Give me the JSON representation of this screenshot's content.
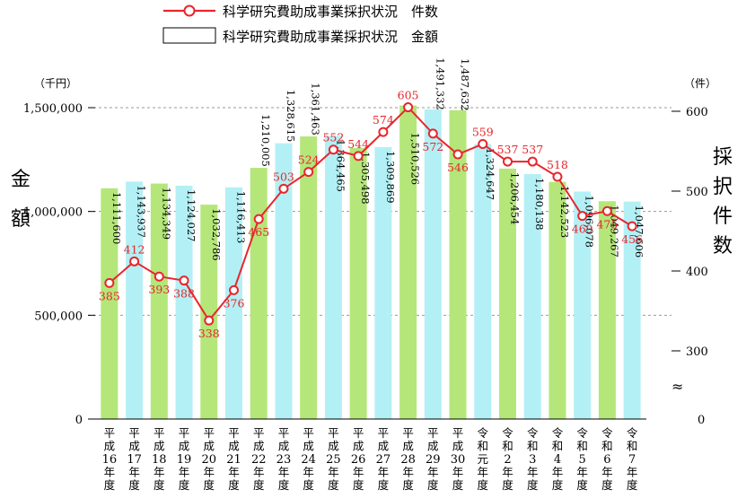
{
  "chart_data": {
    "type": "bar",
    "categories": [
      "平成16年度",
      "平成17年度",
      "平成18年度",
      "平成19年度",
      "平成20年度",
      "平成21年度",
      "平成22年度",
      "平成23年度",
      "平成24年度",
      "平成25年度",
      "平成26年度",
      "平成27年度",
      "平成28年度",
      "平成29年度",
      "平成30年度",
      "令和元年度",
      "令和2年度",
      "令和3年度",
      "令和4年度",
      "令和5年度",
      "令和6年度",
      "令和7年度"
    ],
    "category_lines": [
      [
        "平",
        "成",
        "16",
        "年",
        "度"
      ],
      [
        "平",
        "成",
        "17",
        "年",
        "度"
      ],
      [
        "平",
        "成",
        "18",
        "年",
        "度"
      ],
      [
        "平",
        "成",
        "19",
        "年",
        "度"
      ],
      [
        "平",
        "成",
        "20",
        "年",
        "度"
      ],
      [
        "平",
        "成",
        "21",
        "年",
        "度"
      ],
      [
        "平",
        "成",
        "22",
        "年",
        "度"
      ],
      [
        "平",
        "成",
        "23",
        "年",
        "度"
      ],
      [
        "平",
        "成",
        "24",
        "年",
        "度"
      ],
      [
        "平",
        "成",
        "25",
        "年",
        "度"
      ],
      [
        "平",
        "成",
        "26",
        "年",
        "度"
      ],
      [
        "平",
        "成",
        "27",
        "年",
        "度"
      ],
      [
        "平",
        "成",
        "28",
        "年",
        "度"
      ],
      [
        "平",
        "成",
        "29",
        "年",
        "度"
      ],
      [
        "平",
        "成",
        "30",
        "年",
        "度"
      ],
      [
        "令",
        "和",
        "元",
        "年",
        "度"
      ],
      [
        "令",
        "和",
        "2",
        "年",
        "度"
      ],
      [
        "令",
        "和",
        "3",
        "年",
        "度"
      ],
      [
        "令",
        "和",
        "4",
        "年",
        "度"
      ],
      [
        "令",
        "和",
        "5",
        "年",
        "度"
      ],
      [
        "令",
        "和",
        "6",
        "年",
        "度"
      ],
      [
        "令",
        "和",
        "7",
        "年",
        "度"
      ]
    ],
    "series": [
      {
        "name": "科学研究費助成事業採択状況　金額",
        "kind": "bar",
        "axis": "left",
        "values": [
          1111600,
          1143937,
          1134349,
          1124027,
          1032786,
          1116413,
          1210005,
          1328615,
          1361463,
          1364465,
          1305498,
          1309869,
          1510526,
          1491332,
          1487632,
          1324647,
          1206454,
          1180138,
          1142523,
          1096078,
          1049267,
          1047606
        ],
        "labels": [
          "1,111,600",
          "1,143,937",
          "1,134,349",
          "1,124,027",
          "1,032,786",
          "1,116,413",
          "1,210,005",
          "1,328,615",
          "1,361,463",
          "1,364,465",
          "1,305,498",
          "1,309,869",
          "1,510,526",
          "1,491,332",
          "1,487,632",
          "1,324,647",
          "1,206,454",
          "1,180,138",
          "1,142,523",
          "1,096,078",
          "1,049,267",
          "1,047,606"
        ],
        "bar_colors": [
          "green",
          "blue",
          "green",
          "blue",
          "green",
          "blue",
          "green",
          "blue",
          "green",
          "blue",
          "green",
          "blue",
          "green",
          "blue",
          "green",
          "blue",
          "green",
          "blue",
          "green",
          "blue",
          "green",
          "blue"
        ]
      },
      {
        "name": "科学研究費助成事業採択状況　件数",
        "kind": "line",
        "axis": "right",
        "values": [
          385,
          412,
          393,
          388,
          338,
          376,
          465,
          503,
          524,
          552,
          544,
          574,
          605,
          572,
          546,
          559,
          537,
          537,
          518,
          469,
          475,
          456
        ]
      }
    ],
    "colors": {
      "green": "#b5e67a",
      "blue": "#b3f0f5",
      "line": "#e8262c",
      "label": "#e8262c",
      "axis": "#000000",
      "grid": "#999999"
    },
    "left_axis": {
      "unit_label": "（千円）",
      "title_chars": [
        "金",
        "額"
      ],
      "ylim": [
        0,
        1600000
      ],
      "ticks": [
        0,
        500000,
        1000000,
        1500000
      ],
      "tick_labels": [
        "0",
        "500,000",
        "1,000,000",
        "1,500,000"
      ]
    },
    "right_axis": {
      "unit_label": "（件）",
      "title_chars": [
        "採",
        "択",
        "件",
        "数"
      ],
      "broken_axis": true,
      "break_symbol": "≈",
      "tick_values": [
        300,
        400,
        500,
        600
      ],
      "tick_labels": [
        "300",
        "400",
        "500",
        "600"
      ],
      "zero_label": "0",
      "range_shown": [
        250,
        650
      ]
    },
    "gridlines": [
      500000,
      1000000,
      1500000
    ],
    "legend": {
      "placement": "top-center",
      "items": [
        {
          "label": "科学研究費助成事業採択状況　件数",
          "symbol": "line-marker"
        },
        {
          "label": "科学研究費助成事業採択状況　金額",
          "symbol": "box"
        }
      ]
    }
  }
}
